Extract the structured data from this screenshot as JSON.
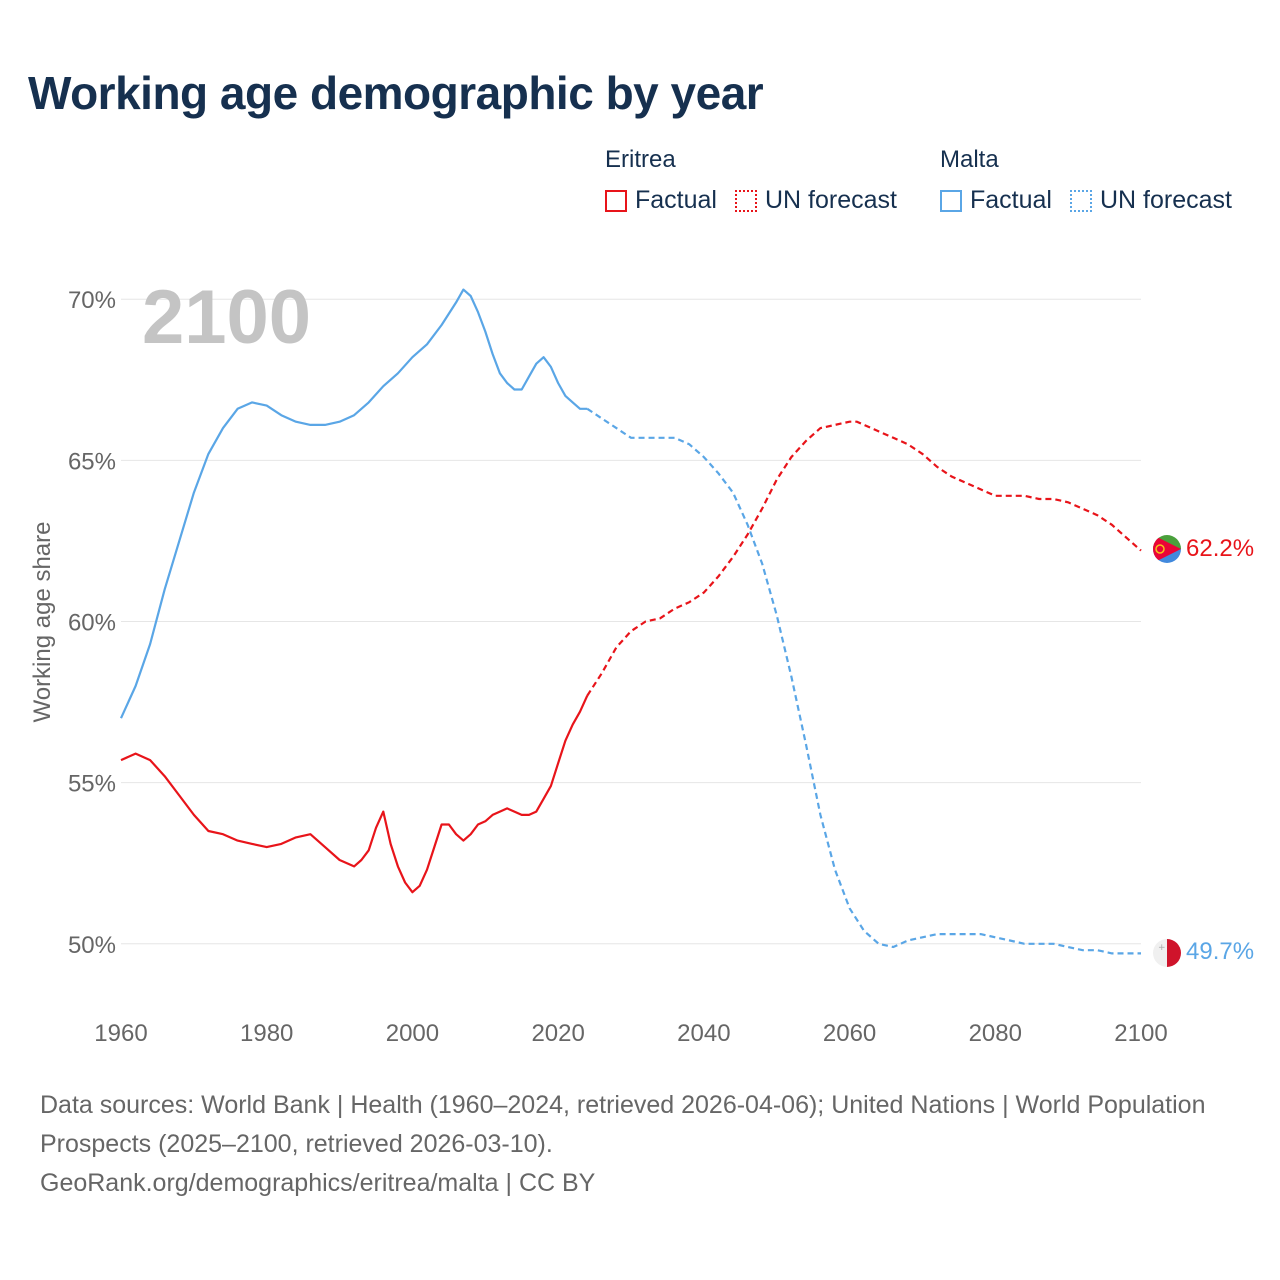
{
  "title": "Working age demographic by year",
  "legend": {
    "groups": [
      {
        "name": "Eritrea",
        "factual": "Factual",
        "forecast": "UN forecast"
      },
      {
        "name": "Malta",
        "factual": "Factual",
        "forecast": "UN forecast"
      }
    ]
  },
  "colors": {
    "eritrea": "#e8141a",
    "malta": "#5aa6e6",
    "year_label": "#c4c4c4",
    "grid": "#e6e6e6",
    "axis_text": "#666666"
  },
  "footer": {
    "sources": "Data sources: World Bank | Health (1960–2024, retrieved 2026-04-06); United Nations | World Population Prospects (2025–2100, retrieved 2026-03-10).",
    "credit": "GeoRank.org/demographics/eritrea/malta | CC BY"
  },
  "chart_data": {
    "type": "line",
    "title": "Working age demographic by year",
    "ylabel": "Working age share",
    "xlabel": "",
    "current_year_label": "2100",
    "xlim": [
      1960,
      2100
    ],
    "ylim": [
      49,
      71
    ],
    "x_ticks": [
      1960,
      1980,
      2000,
      2020,
      2040,
      2060,
      2080,
      2100
    ],
    "x_tick_labels": [
      "1960",
      "1980",
      "2000",
      "2020",
      "2040",
      "2060",
      "2080",
      "2100"
    ],
    "y_ticks": [
      50,
      55,
      60,
      65,
      70
    ],
    "y_tick_labels": [
      "50%",
      "55%",
      "60%",
      "65%",
      "70%"
    ],
    "series": [
      {
        "name": "Eritrea",
        "color_key": "eritrea",
        "end_label": "62.2%",
        "end_value": 62.2,
        "factual": {
          "x": [
            1960,
            1962,
            1964,
            1966,
            1968,
            1970,
            1972,
            1974,
            1976,
            1978,
            1980,
            1982,
            1984,
            1986,
            1988,
            1990,
            1992,
            1993,
            1994,
            1995,
            1996,
            1997,
            1998,
            1999,
            2000,
            2001,
            2002,
            2003,
            2004,
            2005,
            2006,
            2007,
            2008,
            2009,
            2010,
            2011,
            2012,
            2013,
            2014,
            2015,
            2016,
            2017,
            2018,
            2019,
            2020,
            2021,
            2022,
            2023,
            2024
          ],
          "y": [
            55.7,
            55.9,
            55.7,
            55.2,
            54.6,
            54.0,
            53.5,
            53.4,
            53.2,
            53.1,
            53.0,
            53.1,
            53.3,
            53.4,
            53.0,
            52.6,
            52.4,
            52.6,
            52.9,
            53.6,
            54.1,
            53.1,
            52.4,
            51.9,
            51.6,
            51.8,
            52.3,
            53.0,
            53.7,
            53.7,
            53.4,
            53.2,
            53.4,
            53.7,
            53.8,
            54.0,
            54.1,
            54.2,
            54.1,
            54.0,
            54.0,
            54.1,
            54.5,
            54.9,
            55.6,
            56.3,
            56.8,
            57.2,
            57.7
          ]
        },
        "forecast": {
          "x": [
            2024,
            2026,
            2028,
            2030,
            2032,
            2034,
            2036,
            2038,
            2040,
            2042,
            2044,
            2046,
            2048,
            2050,
            2052,
            2054,
            2056,
            2058,
            2060,
            2061,
            2062,
            2064,
            2066,
            2068,
            2070,
            2072,
            2074,
            2076,
            2078,
            2080,
            2082,
            2084,
            2086,
            2088,
            2090,
            2092,
            2094,
            2096,
            2098,
            2100
          ],
          "y": [
            57.7,
            58.4,
            59.2,
            59.7,
            60.0,
            60.1,
            60.4,
            60.6,
            60.9,
            61.4,
            62.0,
            62.7,
            63.5,
            64.4,
            65.1,
            65.6,
            66.0,
            66.1,
            66.2,
            66.2,
            66.1,
            65.9,
            65.7,
            65.5,
            65.2,
            64.8,
            64.5,
            64.3,
            64.1,
            63.9,
            63.9,
            63.9,
            63.8,
            63.8,
            63.7,
            63.5,
            63.3,
            63.0,
            62.6,
            62.2
          ]
        }
      },
      {
        "name": "Malta",
        "color_key": "malta",
        "end_label": "49.7%",
        "end_value": 49.7,
        "factual": {
          "x": [
            1960,
            1962,
            1964,
            1966,
            1968,
            1970,
            1972,
            1974,
            1976,
            1978,
            1980,
            1982,
            1984,
            1986,
            1988,
            1990,
            1992,
            1994,
            1996,
            1998,
            2000,
            2002,
            2004,
            2006,
            2007,
            2008,
            2009,
            2010,
            2011,
            2012,
            2013,
            2014,
            2015,
            2016,
            2017,
            2018,
            2019,
            2020,
            2021,
            2022,
            2023,
            2024
          ],
          "y": [
            57.0,
            58.0,
            59.3,
            61.0,
            62.5,
            64.0,
            65.2,
            66.0,
            66.6,
            66.8,
            66.7,
            66.4,
            66.2,
            66.1,
            66.1,
            66.2,
            66.4,
            66.8,
            67.3,
            67.7,
            68.2,
            68.6,
            69.2,
            69.9,
            70.3,
            70.1,
            69.6,
            69.0,
            68.3,
            67.7,
            67.4,
            67.2,
            67.2,
            67.6,
            68.0,
            68.2,
            67.9,
            67.4,
            67.0,
            66.8,
            66.6,
            66.6
          ]
        },
        "forecast": {
          "x": [
            2024,
            2026,
            2028,
            2030,
            2032,
            2034,
            2036,
            2038,
            2040,
            2042,
            2044,
            2046,
            2048,
            2050,
            2052,
            2054,
            2056,
            2058,
            2060,
            2062,
            2064,
            2066,
            2068,
            2070,
            2072,
            2074,
            2076,
            2078,
            2080,
            2082,
            2084,
            2086,
            2088,
            2090,
            2092,
            2094,
            2096,
            2098,
            2100
          ],
          "y": [
            66.6,
            66.3,
            66.0,
            65.7,
            65.7,
            65.7,
            65.7,
            65.5,
            65.1,
            64.6,
            64.0,
            63.0,
            61.8,
            60.2,
            58.3,
            56.2,
            54.0,
            52.3,
            51.1,
            50.4,
            50.0,
            49.9,
            50.1,
            50.2,
            50.3,
            50.3,
            50.3,
            50.3,
            50.2,
            50.1,
            50.0,
            50.0,
            50.0,
            49.9,
            49.8,
            49.8,
            49.7,
            49.7,
            49.7
          ]
        }
      }
    ]
  }
}
